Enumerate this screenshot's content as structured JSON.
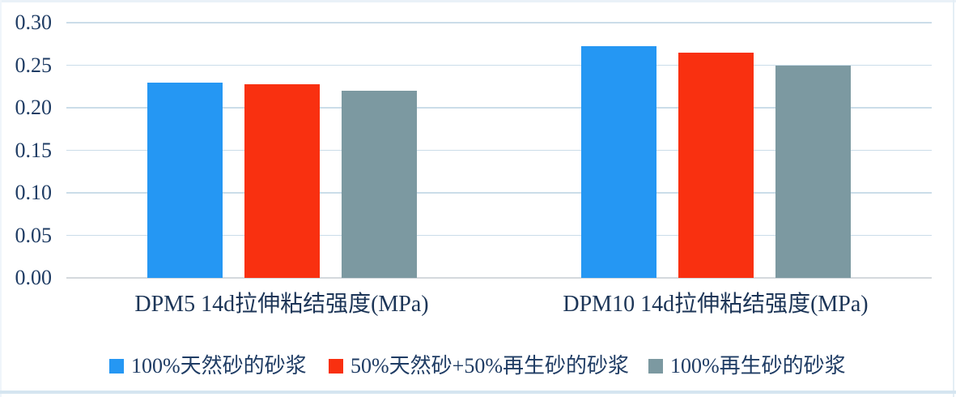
{
  "chart_data": {
    "type": "bar",
    "title": "",
    "xlabel": "",
    "ylabel": "",
    "categories": [
      "DPM5 14d拉伸粘结强度(MPa)",
      "DPM10 14d拉伸粘结强度(MPa)"
    ],
    "series": [
      {
        "name": "100%天然砂的砂浆",
        "color": "#2597F3",
        "values": [
          0.23,
          0.272
        ]
      },
      {
        "name": "50%天然砂+50%再生砂的砂浆",
        "color": "#F93010",
        "values": [
          0.228,
          0.265
        ]
      },
      {
        "name": "100%再生砂的砂浆",
        "color": "#7C99A1",
        "values": [
          0.22,
          0.25
        ]
      }
    ],
    "ylim": [
      0,
      0.3
    ],
    "yticks": [
      0,
      0.05,
      0.1,
      0.15,
      0.2,
      0.25,
      0.3
    ],
    "ytick_labels": [
      "0.00",
      "0.05",
      "0.10",
      "0.15",
      "0.20",
      "0.25",
      "0.30"
    ],
    "grid": true,
    "legend_position": "bottom"
  },
  "style": {
    "gridline_color": "#CBDDE9",
    "baseline_color": "#D4D9DD",
    "text_color": "#1F3C64",
    "background": "#FFFFFF"
  }
}
